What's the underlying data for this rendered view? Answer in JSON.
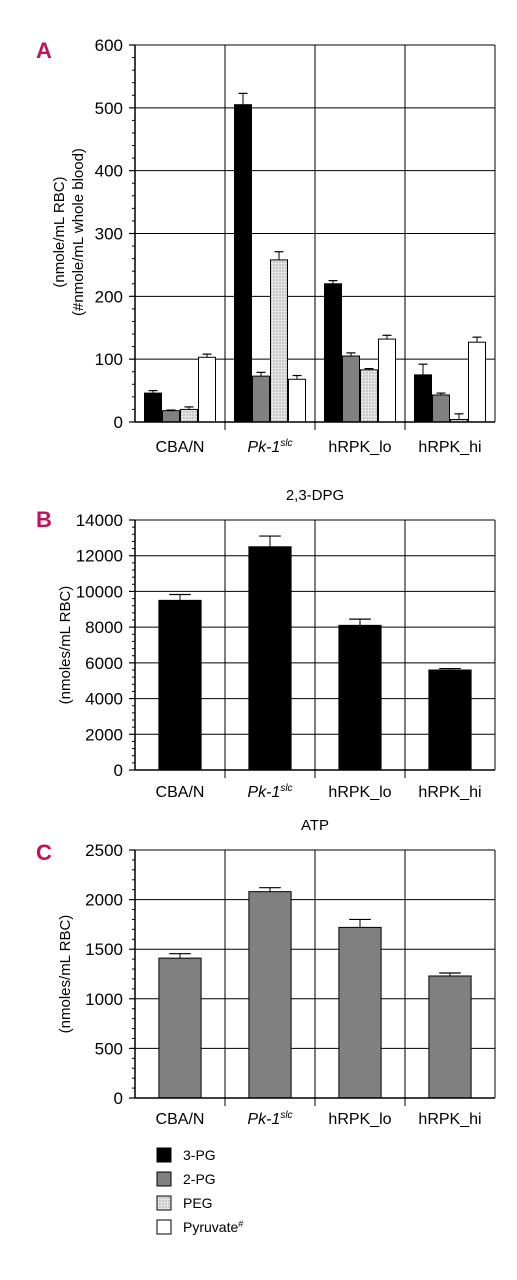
{
  "chart_data": [
    {
      "panel": "A",
      "type": "bar",
      "title": "",
      "ylabel": "(nmole/mL RBC)",
      "ylabel2": "(#nmole/mL whole blood)",
      "ylim": [
        0,
        600
      ],
      "yticks": [
        0,
        100,
        200,
        300,
        400,
        500,
        600
      ],
      "categories": [
        {
          "main": "CBA/N",
          "sup": ""
        },
        {
          "main": "Pk-1",
          "sup": "slc",
          "italic": true
        },
        {
          "main": "hRPK_lo",
          "sup": ""
        },
        {
          "main": "hRPK_hi",
          "sup": ""
        }
      ],
      "series": [
        {
          "name": "3-PG",
          "color": "#000000",
          "values": [
            46,
            505,
            220,
            75
          ],
          "errors": [
            4,
            18,
            5,
            17
          ]
        },
        {
          "name": "2-PG",
          "color": "#808080",
          "values": [
            18,
            73,
            105,
            43
          ],
          "errors": [
            1,
            6,
            5,
            3
          ]
        },
        {
          "name": "PEG",
          "color": "#dcdcdc",
          "pattern": "dots",
          "values": [
            20,
            258,
            83,
            4
          ],
          "errors": [
            4,
            13,
            2,
            9
          ]
        },
        {
          "name": "Pyruvate",
          "name_sup": "#",
          "color": "#ffffff",
          "values": [
            103,
            68,
            132,
            127
          ],
          "errors": [
            5,
            6,
            6,
            8
          ]
        }
      ]
    },
    {
      "panel": "B",
      "type": "bar",
      "title": "2,3-DPG",
      "ylabel": "(nmoles/mL RBC)",
      "ylim": [
        0,
        14000
      ],
      "yticks": [
        0,
        2000,
        4000,
        6000,
        8000,
        10000,
        12000,
        14000
      ],
      "categories": [
        {
          "main": "CBA/N",
          "sup": ""
        },
        {
          "main": "Pk-1",
          "sup": "slc",
          "italic": true
        },
        {
          "main": "hRPK_lo",
          "sup": ""
        },
        {
          "main": "hRPK_hi",
          "sup": ""
        }
      ],
      "series": [
        {
          "name": "2,3-DPG",
          "color": "#000000",
          "values": [
            9500,
            12500,
            8100,
            5600
          ],
          "errors": [
            330,
            600,
            350,
            80
          ]
        }
      ]
    },
    {
      "panel": "C",
      "type": "bar",
      "title": "ATP",
      "ylabel": "(nmoles/mL RBC)",
      "ylim": [
        0,
        2500
      ],
      "yticks": [
        0,
        500,
        1000,
        1500,
        2000,
        2500
      ],
      "categories": [
        {
          "main": "CBA/N",
          "sup": ""
        },
        {
          "main": "Pk-1",
          "sup": "slc",
          "italic": true
        },
        {
          "main": "hRPK_lo",
          "sup": ""
        },
        {
          "main": "hRPK_hi",
          "sup": ""
        }
      ],
      "series": [
        {
          "name": "ATP",
          "color": "#808080",
          "values": [
            1410,
            2080,
            1720,
            1230
          ],
          "errors": [
            45,
            40,
            80,
            30
          ]
        }
      ]
    }
  ],
  "legend": [
    {
      "label": "3-PG",
      "sup": "",
      "color": "#000000"
    },
    {
      "label": "2-PG",
      "sup": "",
      "color": "#808080"
    },
    {
      "label": "PEG",
      "sup": "",
      "color": "#dcdcdc",
      "pattern": "dots"
    },
    {
      "label": "Pyruvate",
      "sup": "#",
      "color": "#ffffff"
    }
  ]
}
